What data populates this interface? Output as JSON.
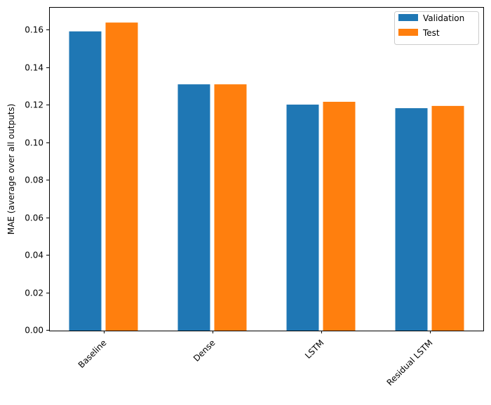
{
  "chart_data": {
    "type": "bar",
    "title": "",
    "xlabel": "",
    "ylabel": "MAE (average over all outputs)",
    "categories": [
      "Baseline",
      "Dense",
      "LSTM",
      "Residual LSTM"
    ],
    "series": [
      {
        "name": "Validation",
        "color": "#1f77b4",
        "values": [
          0.1591,
          0.1309,
          0.1201,
          0.1182
        ]
      },
      {
        "name": "Test",
        "color": "#ff7f0e",
        "values": [
          0.1638,
          0.1309,
          0.1216,
          0.1194
        ]
      }
    ],
    "ylim": [
      0,
      0.172
    ],
    "yticks": [
      "0.00",
      "0.02",
      "0.04",
      "0.06",
      "0.08",
      "0.10",
      "0.12",
      "0.14",
      "0.16"
    ],
    "grid": false,
    "legend": "top-right"
  }
}
